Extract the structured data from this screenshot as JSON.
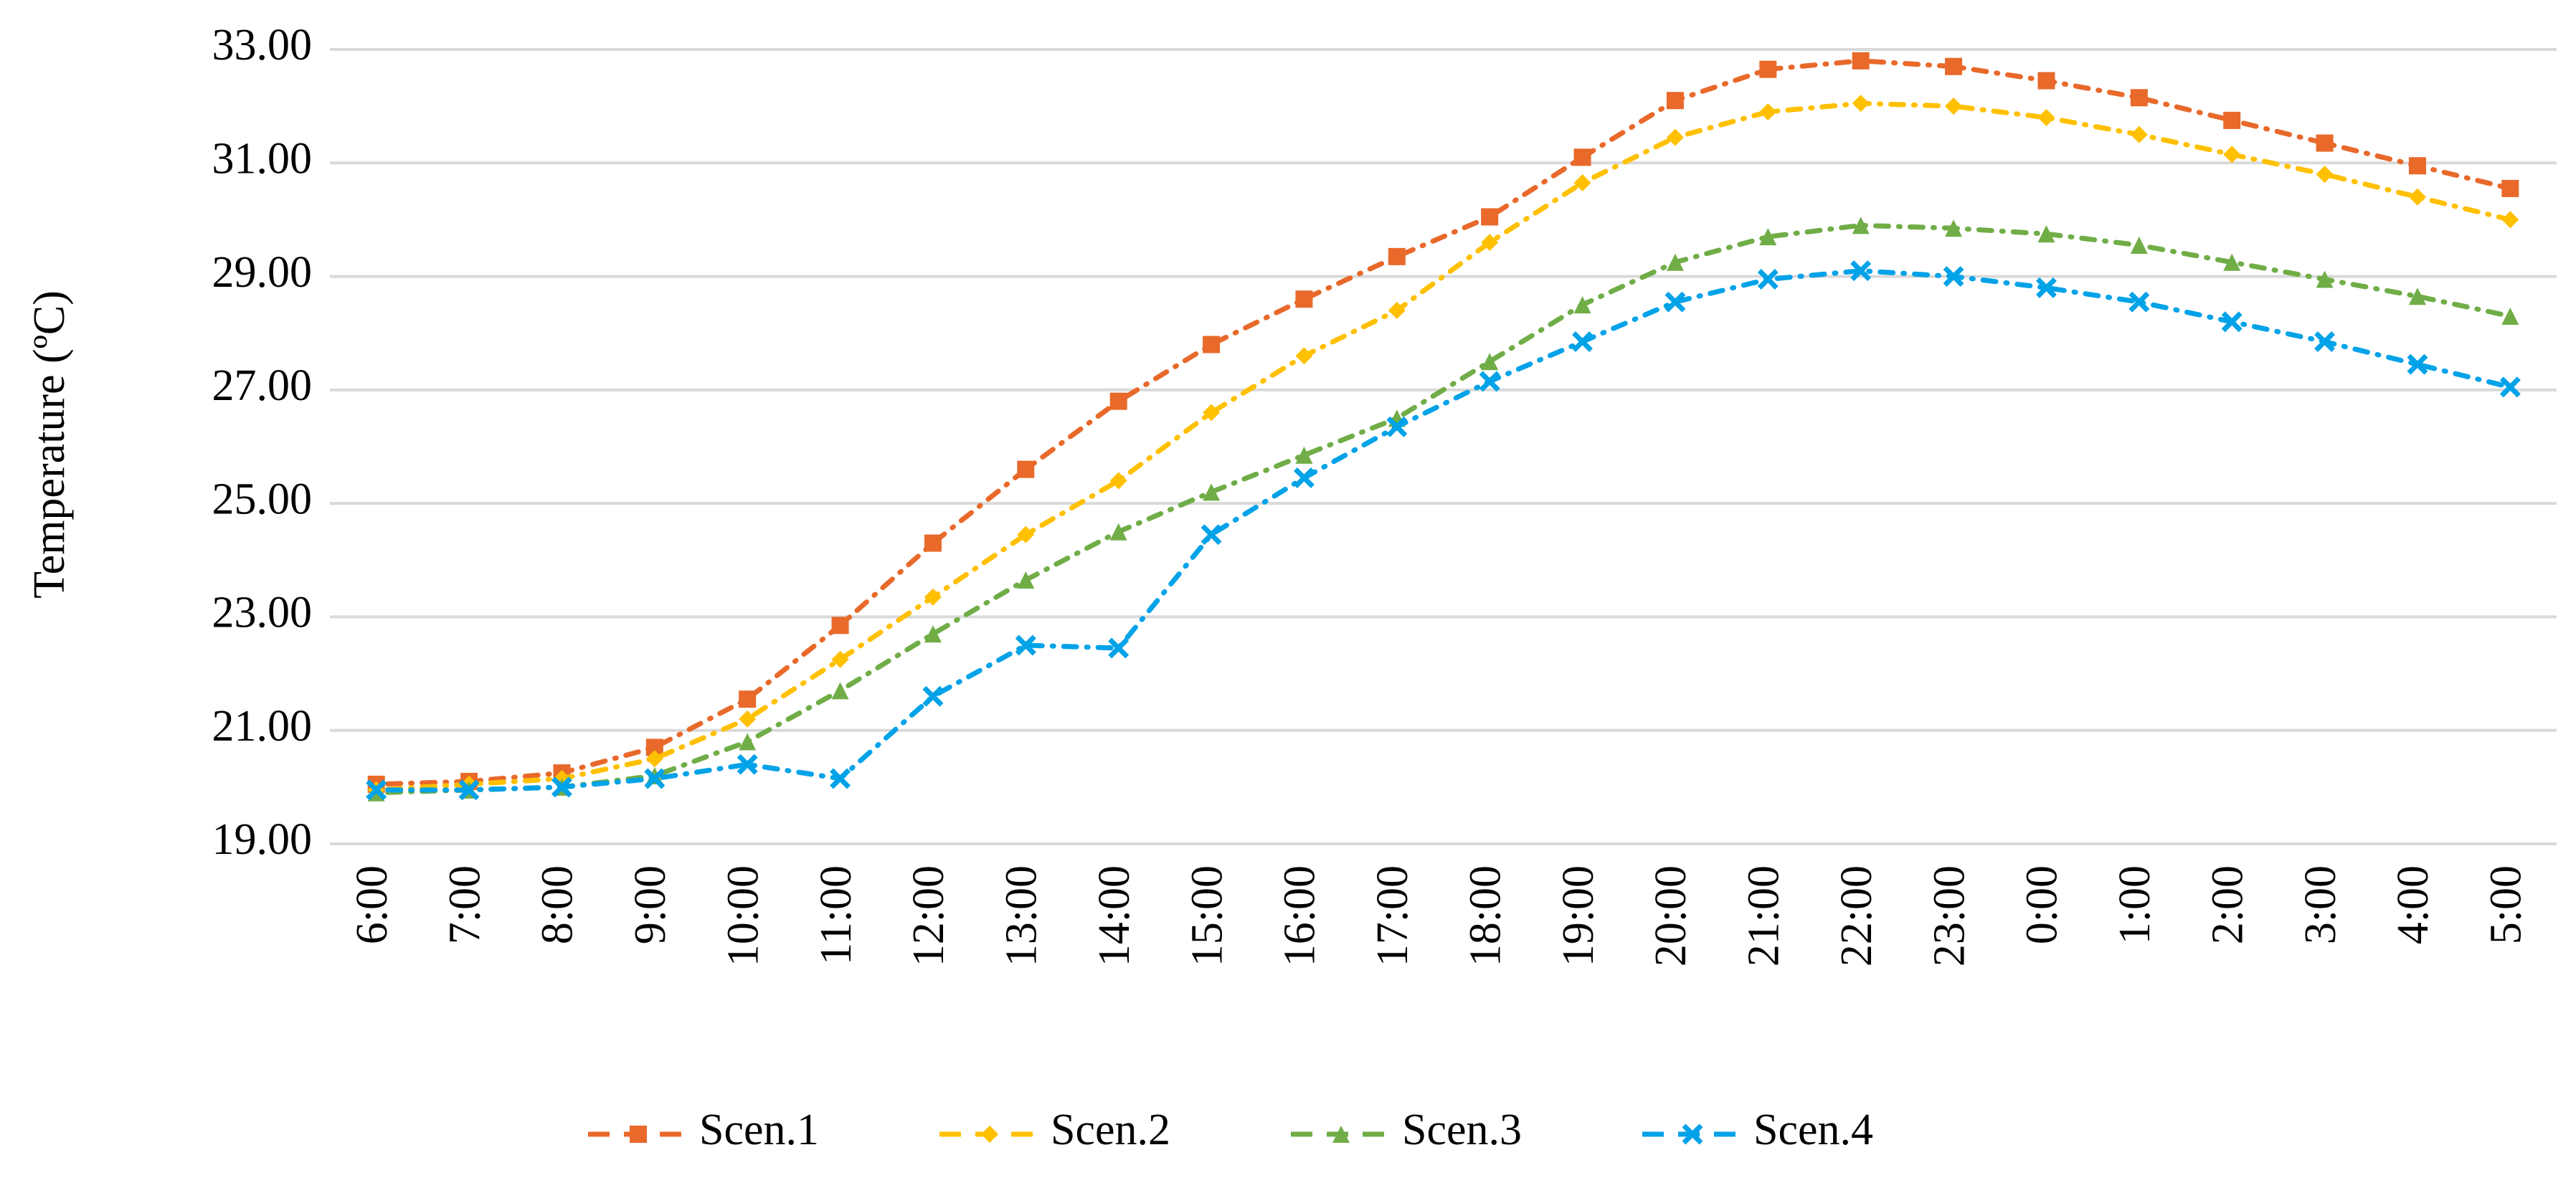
{
  "chart_data": {
    "type": "line",
    "y_label": "Temperature (ºC)",
    "categories": [
      "6:00",
      "7:00",
      "8:00",
      "9:00",
      "10:00",
      "11:00",
      "12:00",
      "13:00",
      "14:00",
      "15:00",
      "16:00",
      "17:00",
      "18:00",
      "19:00",
      "20:00",
      "21:00",
      "22:00",
      "23:00",
      "0:00",
      "1:00",
      "2:00",
      "3:00",
      "4:00",
      "5:00"
    ],
    "series": [
      {
        "name": "Scen.1",
        "color": "#e8692a",
        "marker": "square",
        "values": [
          20.05,
          20.1,
          20.25,
          20.7,
          21.55,
          22.85,
          24.3,
          25.6,
          26.8,
          27.8,
          28.6,
          29.35,
          30.05,
          31.1,
          32.1,
          32.65,
          32.8,
          32.7,
          32.45,
          32.15,
          31.75,
          31.35,
          30.95,
          30.55
        ]
      },
      {
        "name": "Scen.2",
        "color": "#ffc000",
        "marker": "diamond",
        "values": [
          19.95,
          20.05,
          20.15,
          20.5,
          21.2,
          22.25,
          23.35,
          24.45,
          25.4,
          26.6,
          27.6,
          28.4,
          29.6,
          30.65,
          31.45,
          31.9,
          32.05,
          32.0,
          31.8,
          31.5,
          31.15,
          30.8,
          30.4,
          30.0
        ]
      },
      {
        "name": "Scen.3",
        "color": "#70ad47",
        "marker": "triangle",
        "values": [
          19.9,
          19.95,
          20.0,
          20.2,
          20.8,
          21.7,
          22.7,
          23.65,
          24.5,
          25.2,
          25.85,
          26.5,
          27.5,
          28.5,
          29.25,
          29.7,
          29.9,
          29.85,
          29.75,
          29.55,
          29.25,
          28.95,
          28.65,
          28.3
        ]
      },
      {
        "name": "Scen.4",
        "color": "#00a2e8",
        "marker": "x",
        "values": [
          19.95,
          19.95,
          20.0,
          20.15,
          20.4,
          20.15,
          21.6,
          22.5,
          22.45,
          24.45,
          25.45,
          26.35,
          27.15,
          27.85,
          28.55,
          28.95,
          29.1,
          29.0,
          28.8,
          28.55,
          28.2,
          27.85,
          27.45,
          27.05
        ]
      }
    ],
    "ylim": [
      19,
      33
    ],
    "yticks": [
      {
        "value": 19,
        "label": "19.00"
      },
      {
        "value": 21,
        "label": "21.00"
      },
      {
        "value": 23,
        "label": "23.00"
      },
      {
        "value": 25,
        "label": "25.00"
      },
      {
        "value": 27,
        "label": "27.00"
      },
      {
        "value": 29,
        "label": "29.00"
      },
      {
        "value": 31,
        "label": "31.00"
      },
      {
        "value": 33,
        "label": "33.00"
      }
    ],
    "grid": true,
    "legend": "bottom"
  }
}
